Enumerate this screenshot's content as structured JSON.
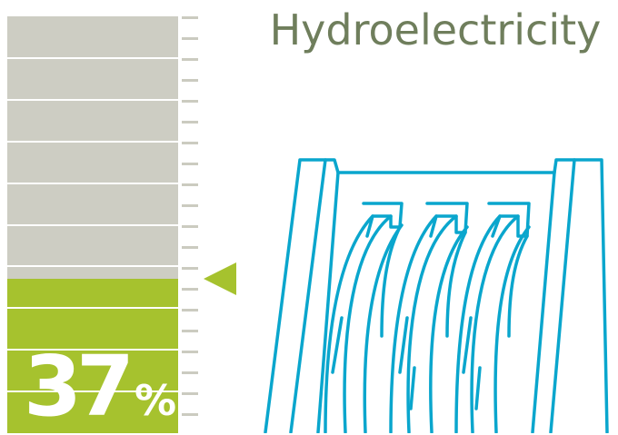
{
  "title": "Hydroelectricity",
  "gauge": {
    "value_percent": 37,
    "display_number": "37",
    "display_unit": "%",
    "track_color": "#cdcdc3",
    "fill_color": "#a6c22e",
    "segments": 10
  },
  "pointer": {
    "color": "#a6c22e",
    "direction": "left"
  },
  "illustration": {
    "name": "dam-icon",
    "stroke_color": "#0aa6cd"
  },
  "title_color": "#6f7e5c",
  "tick_color": "#cbcbc0"
}
